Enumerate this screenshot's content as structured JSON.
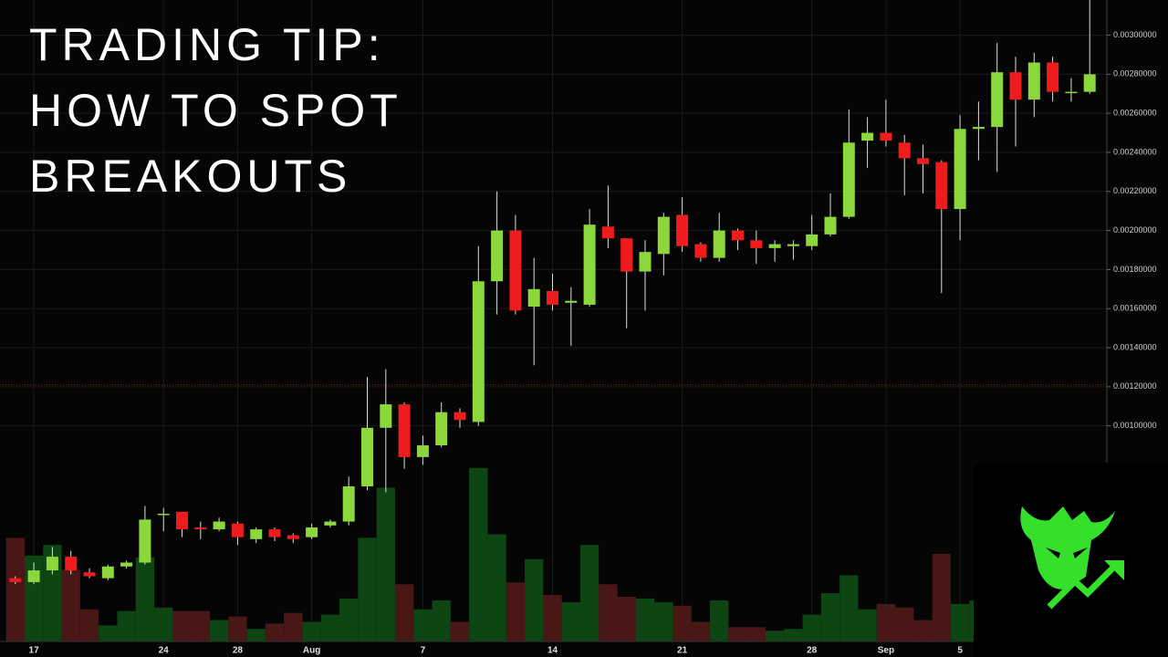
{
  "chart_data": {
    "type": "candlestick",
    "title": [
      "TRADING TIP:",
      "HOW TO SPOT",
      "BREAKOUTS"
    ],
    "categories": [
      null,
      "17",
      null,
      null,
      null,
      null,
      null,
      null,
      "24",
      null,
      null,
      null,
      "28",
      null,
      null,
      null,
      "Aug",
      null,
      null,
      null,
      null,
      null,
      "7",
      null,
      null,
      null,
      null,
      null,
      null,
      "14",
      null,
      null,
      null,
      null,
      null,
      null,
      "21",
      null,
      null,
      null,
      null,
      null,
      null,
      "28",
      null,
      null,
      null,
      "Sep",
      null,
      null,
      null,
      "5",
      null,
      null,
      null,
      null,
      null,
      null,
      null
    ],
    "open": [
      0.00022,
      0.0002,
      0.00026,
      0.00033,
      0.00025,
      0.00022,
      0.00028,
      0.0003,
      0.00055,
      0.00056,
      0.00048,
      0.00047,
      0.0005,
      0.00042,
      0.00047,
      0.00044,
      0.00043,
      0.00049,
      0.00051,
      0.00069,
      0.00099,
      0.00111,
      0.00084,
      0.0009,
      0.00107,
      0.00102,
      0.00174,
      0.002,
      0.00161,
      0.00169,
      0.00163,
      0.00162,
      0.00202,
      0.00196,
      0.00179,
      0.00188,
      0.00208,
      0.00193,
      0.00186,
      0.002,
      0.00195,
      0.00191,
      0.00192,
      0.00192,
      0.00198,
      0.00207,
      0.00246,
      0.0025,
      0.00245,
      0.00237,
      0.00235,
      0.00211,
      0.00252,
      0.00253,
      0.00281,
      0.00267,
      0.00286,
      0.00271,
      0.00271
    ],
    "high": [
      0.00023,
      0.0003,
      0.00038,
      0.00036,
      0.00027,
      0.00029,
      0.00031,
      0.00059,
      0.00058,
      0.00056,
      0.00051,
      0.00053,
      0.00051,
      0.00048,
      0.00048,
      0.00045,
      0.0005,
      0.00052,
      0.00074,
      0.00125,
      0.00129,
      0.00112,
      0.00095,
      0.00112,
      0.00109,
      0.00192,
      0.0022,
      0.00208,
      0.00186,
      0.00178,
      0.00171,
      0.00211,
      0.00223,
      0.00196,
      0.00195,
      0.00209,
      0.00217,
      0.00194,
      0.00209,
      0.00201,
      0.002,
      0.00195,
      0.00195,
      0.00208,
      0.00219,
      0.00262,
      0.00258,
      0.00267,
      0.00249,
      0.00244,
      0.00236,
      0.00259,
      0.00266,
      0.00296,
      0.00289,
      0.00291,
      0.00289,
      0.00278,
      0.00325
    ],
    "low": [
      0.00019,
      0.00019,
      0.00024,
      0.00024,
      0.00022,
      0.00021,
      0.00027,
      0.00029,
      0.00046,
      0.00043,
      0.00042,
      0.00046,
      0.00039,
      0.0004,
      0.00041,
      0.0004,
      0.00042,
      0.00048,
      0.00049,
      0.00067,
      0.00066,
      0.00078,
      0.0008,
      0.00089,
      0.00099,
      0.001,
      0.00157,
      0.00157,
      0.00131,
      0.00159,
      0.00141,
      0.00161,
      0.00191,
      0.0015,
      0.00159,
      0.00177,
      0.00189,
      0.00184,
      0.00184,
      0.0019,
      0.00183,
      0.00184,
      0.00185,
      0.0019,
      0.00197,
      0.00206,
      0.00232,
      0.00243,
      0.00218,
      0.00219,
      0.00168,
      0.00195,
      0.00236,
      0.0023,
      0.00243,
      0.00258,
      0.00266,
      0.00266,
      0.0027
    ],
    "close": [
      0.0002,
      0.00026,
      0.00033,
      0.00026,
      0.00023,
      0.00028,
      0.0003,
      0.00052,
      0.00055,
      0.00047,
      0.00047,
      0.00051,
      0.00043,
      0.00047,
      0.00043,
      0.00042,
      0.00048,
      0.00051,
      0.00069,
      0.00099,
      0.00111,
      0.00084,
      0.0009,
      0.00107,
      0.00103,
      0.00174,
      0.002,
      0.00159,
      0.0017,
      0.00162,
      0.00164,
      0.00203,
      0.00196,
      0.00179,
      0.00189,
      0.00207,
      0.00192,
      0.00186,
      0.002,
      0.00195,
      0.00191,
      0.00193,
      0.00193,
      0.00198,
      0.00207,
      0.00245,
      0.0025,
      0.00246,
      0.00237,
      0.00234,
      0.00211,
      0.00252,
      0.00253,
      0.00281,
      0.00267,
      0.00286,
      0.00271,
      0.00271,
      0.0028
    ],
    "volume": [
      58,
      48,
      54,
      40,
      18,
      9,
      17,
      47,
      19,
      17,
      17,
      12,
      14,
      7,
      10,
      16,
      11,
      15,
      24,
      58,
      86,
      32,
      18,
      23,
      11,
      97,
      60,
      33,
      46,
      26,
      22,
      54,
      32,
      25,
      24,
      22,
      20,
      11,
      23,
      8,
      8,
      6,
      7,
      15,
      27,
      37,
      18,
      21,
      19,
      12,
      49,
      21,
      23,
      null,
      null,
      null,
      null,
      null,
      null
    ],
    "up_color": "#8cd83c",
    "down_color": "#ee1c1c",
    "volume_up_color": "#0d4612",
    "volume_down_color": "#4a1717",
    "ylim": [
      -9e-05,
      0.00318
    ],
    "yticks": [
      {
        "value": 0.001,
        "label": "0.00100000"
      },
      {
        "value": 0.0012,
        "label": "0.00120000"
      },
      {
        "value": 0.0014,
        "label": "0.00140000"
      },
      {
        "value": 0.0016,
        "label": "0.00160000"
      },
      {
        "value": 0.0018,
        "label": "0.00180000"
      },
      {
        "value": 0.002,
        "label": "0.00200000"
      },
      {
        "value": 0.0022,
        "label": "0.00220000"
      },
      {
        "value": 0.0024,
        "label": "0.00240000"
      },
      {
        "value": 0.0026,
        "label": "0.00260000"
      },
      {
        "value": 0.0028,
        "label": "0.00280000"
      },
      {
        "value": 0.003,
        "label": "0.00300000"
      }
    ],
    "volume_lim": [
      0,
      100
    ],
    "hline": 0.00121,
    "hline_color": "#b3201c",
    "grid": true
  }
}
